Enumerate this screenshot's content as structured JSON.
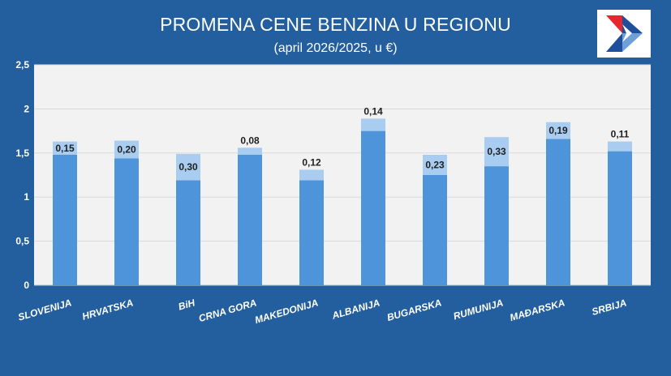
{
  "title": "PROMENA CENE BENZINA U REGIONU",
  "subtitle": "(april 2026/2025, u €)",
  "logo_icon": "flag-arrow-logo",
  "colors": {
    "background": "#235f9e",
    "plot_bg": "#f2f2f2",
    "bar_base": "#4d94db",
    "bar_increase": "#a9cdf0",
    "logo_red": "#e8262e",
    "logo_blue": "#1f4e9a",
    "logo_light": "#6ea0d8"
  },
  "chart_data": {
    "type": "bar",
    "stacked": true,
    "categories": [
      "SLOVENIJA",
      "HRVATSKA",
      "BiH",
      "CRNA GORA",
      "MAKEDONIJA",
      "ALBANIJA",
      "BUGARSKA",
      "RUMUNIJA",
      "MAĐARSKA",
      "SRBIJA"
    ],
    "series": [
      {
        "values": [
          1.48,
          1.44,
          1.19,
          1.48,
          1.19,
          1.75,
          1.25,
          1.35,
          1.66,
          1.52
        ]
      },
      {
        "values": [
          0.15,
          0.2,
          0.3,
          0.08,
          0.12,
          0.14,
          0.23,
          0.33,
          0.19,
          0.11
        ]
      }
    ],
    "data_labels": [
      "0,15",
      "0,20",
      "0,30",
      "0,08",
      "0,12",
      "0,14",
      "0,23",
      "0,33",
      "0,19",
      "0,11"
    ],
    "yticks": [
      "0",
      "0,5",
      "1",
      "1,5",
      "2",
      "2,5"
    ],
    "ylim": [
      0,
      2.5
    ],
    "grid": true,
    "legend": "none"
  }
}
